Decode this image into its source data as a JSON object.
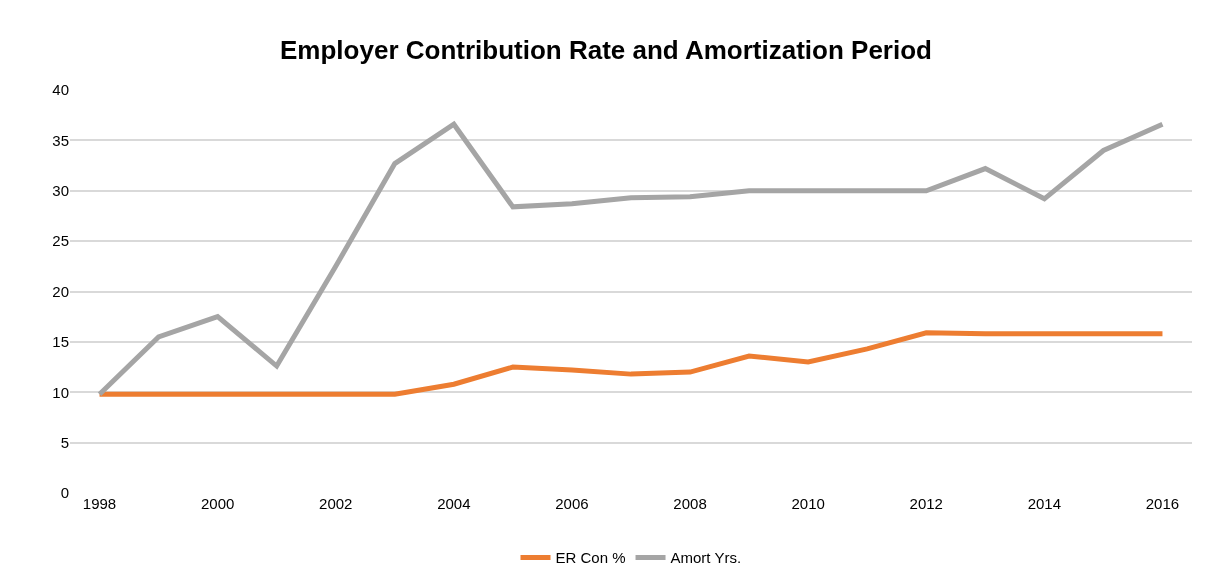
{
  "chart_data": {
    "type": "line",
    "title": "Employer Contribution Rate and Amortization Period",
    "x": [
      1998,
      1999,
      2000,
      2001,
      2002,
      2003,
      2004,
      2005,
      2006,
      2007,
      2008,
      2009,
      2010,
      2011,
      2012,
      2013,
      2014,
      2015,
      2016
    ],
    "series": [
      {
        "name": "ER Con %",
        "color": "#ed7d31",
        "values": [
          9.8,
          9.8,
          9.8,
          9.8,
          9.8,
          9.8,
          10.8,
          12.5,
          12.2,
          11.8,
          12.0,
          13.6,
          13.0,
          14.3,
          15.9,
          15.8,
          15.8,
          15.8,
          15.8
        ]
      },
      {
        "name": "Amort Yrs.",
        "color": "#a5a5a5",
        "values": [
          9.8,
          15.5,
          17.5,
          12.6,
          22.5,
          32.7,
          36.6,
          28.4,
          28.7,
          29.3,
          29.4,
          30.0,
          30.0,
          30.0,
          30.0,
          32.2,
          29.2,
          34.0,
          36.6
        ]
      }
    ],
    "xlim": [
      1997.5,
      2016.5
    ],
    "xticks": [
      1998,
      2000,
      2002,
      2004,
      2006,
      2008,
      2010,
      2012,
      2014,
      2016
    ],
    "ylim": [
      0,
      40
    ],
    "yticks": [
      0,
      5,
      10,
      15,
      20,
      25,
      30,
      35,
      40
    ],
    "grid": "y",
    "legend": "bottom",
    "marker": "none",
    "line_style": "solid"
  }
}
